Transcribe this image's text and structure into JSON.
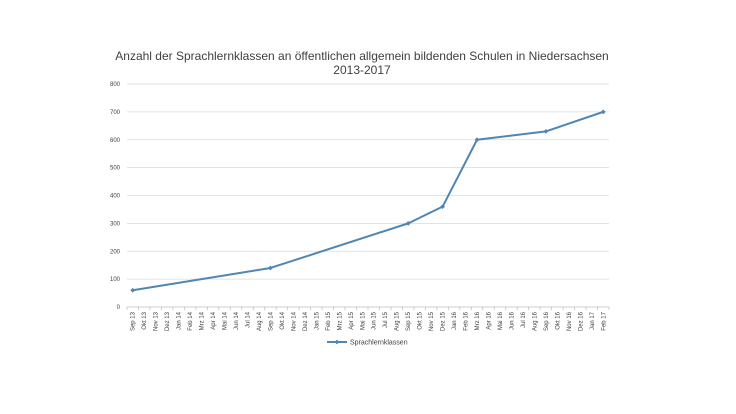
{
  "chart_data": {
    "type": "line",
    "title_lines": [
      "Anzahl der Sprachlernklassen an öffentlichen allgemein bildenden Schulen in Niedersachsen",
      "2013-2017"
    ],
    "xlabel": "",
    "ylabel": "",
    "ylim": [
      0,
      800
    ],
    "yticks": [
      "0",
      "100",
      "200",
      "300",
      "400",
      "500",
      "600",
      "700",
      "800"
    ],
    "categories": [
      "Sep 13",
      "Okt 13",
      "Nov 13",
      "Dez 13",
      "Jan 14",
      "Feb 14",
      "Mrz 14",
      "Apr 14",
      "Mai 14",
      "Jun 14",
      "Jul 14",
      "Aug 14",
      "Sep 14",
      "Okt 14",
      "Nov 14",
      "Dez 14",
      "Jan 15",
      "Feb 15",
      "Mrz 15",
      "Apr 15",
      "Mai 15",
      "Jun 15",
      "Jul 15",
      "Aug 15",
      "Sep 15",
      "Okt 15",
      "Nov 15",
      "Dez 15",
      "Jan 16",
      "Feb 16",
      "Mrz 16",
      "Apr 16",
      "Mai 16",
      "Jun 16",
      "Jul 16",
      "Aug 16",
      "Sep 16",
      "Okt 16",
      "Nov 16",
      "Dez 16",
      "Jan 17",
      "Feb 17"
    ],
    "series": [
      {
        "name": "Sprachlernklassen",
        "color": "#4f86b5",
        "points": [
          {
            "x": "Sep 13",
            "y": 60
          },
          {
            "x": "Sep 14",
            "y": 140
          },
          {
            "x": "Sep 15",
            "y": 300
          },
          {
            "x": "Dez 15",
            "y": 360
          },
          {
            "x": "Mrz 16",
            "y": 600
          },
          {
            "x": "Sep 16",
            "y": 630
          },
          {
            "x": "Feb 17",
            "y": 700
          }
        ]
      }
    ],
    "grid": true,
    "legend_position": "bottom"
  }
}
